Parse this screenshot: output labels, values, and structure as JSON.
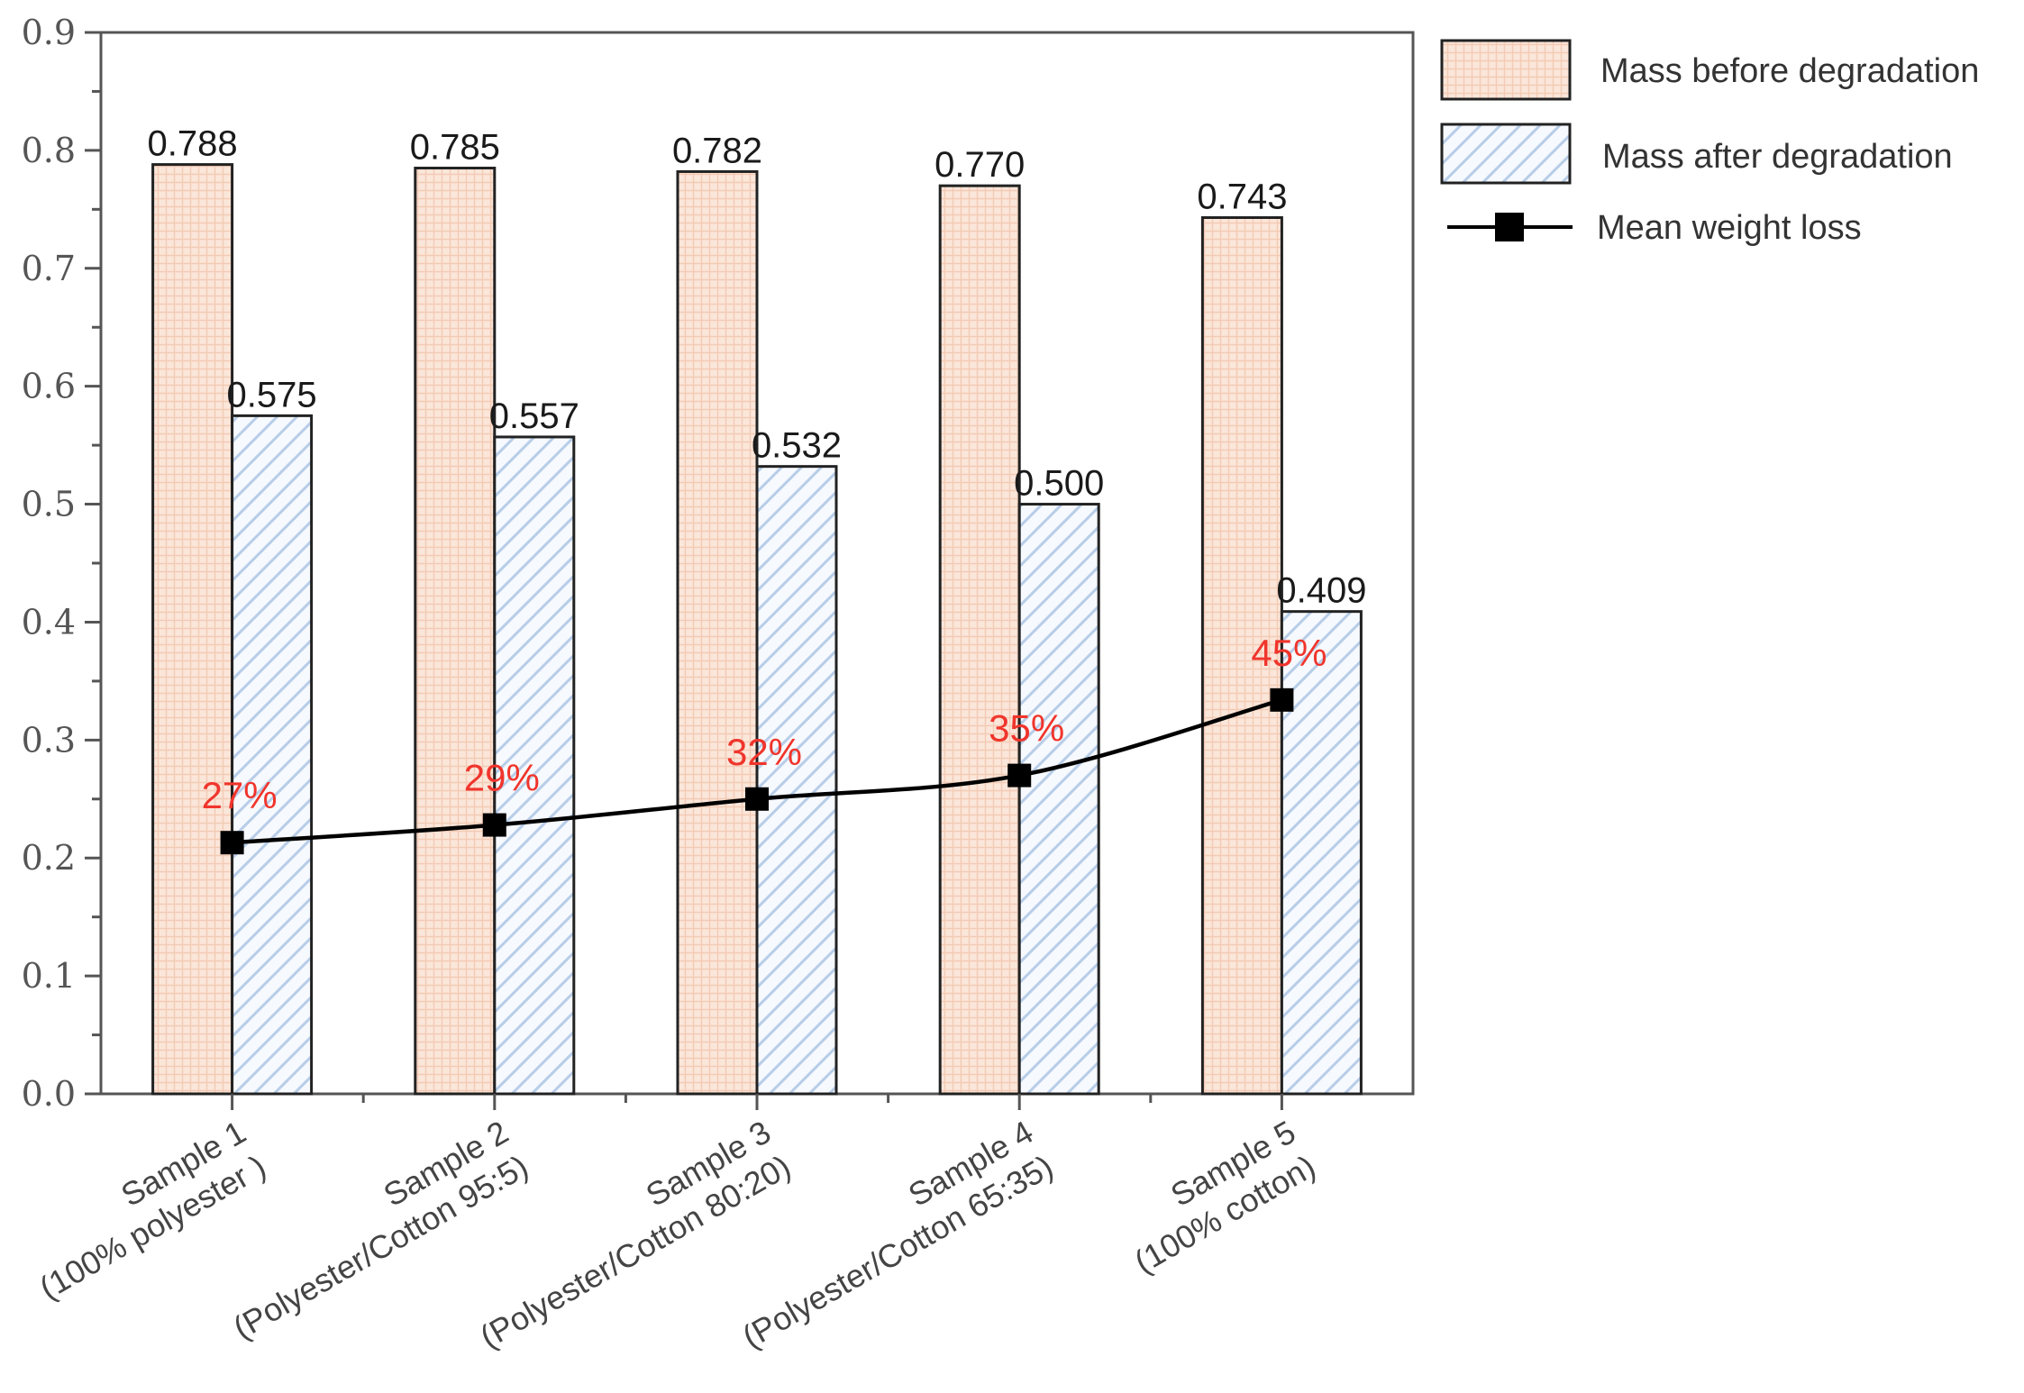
{
  "chart_data": {
    "type": "bar",
    "categories": [
      [
        "Sample 1",
        "(100% polyester )"
      ],
      [
        "Sample 2",
        "(Polyester/Cotton 95:5)"
      ],
      [
        "Sample 3",
        "(Polyester/Cotton 80:20)"
      ],
      [
        "Sample 4",
        "(Polyester/Cotton 65:35)"
      ],
      [
        "Sample 5",
        "(100% cotton)"
      ]
    ],
    "series": [
      {
        "name": "Mass before degradation",
        "type": "bar",
        "values": [
          0.788,
          0.785,
          0.782,
          0.77,
          0.743
        ],
        "labels": [
          "0.788",
          "0.785",
          "0.782",
          "0.770",
          "0.743"
        ],
        "color": "#fbe6da"
      },
      {
        "name": "Mass after degradation",
        "type": "bar",
        "values": [
          0.575,
          0.557,
          0.532,
          0.5,
          0.409
        ],
        "labels": [
          "0.575",
          "0.557",
          "0.532",
          "0.500",
          "0.409"
        ],
        "color": "#eaf1fa"
      },
      {
        "name": "Mean weight loss",
        "type": "line",
        "values": [
          0.213,
          0.228,
          0.25,
          0.27,
          0.334
        ],
        "labels": [
          "27%",
          "29%",
          "32%",
          "35%",
          "45%"
        ],
        "color": "#000000"
      }
    ],
    "title": "",
    "xlabel": "",
    "ylabel": "",
    "ylim": [
      0,
      0.9
    ],
    "yticks": [
      "0.0",
      "0.1",
      "0.2",
      "0.3",
      "0.4",
      "0.5",
      "0.6",
      "0.7",
      "0.8",
      "0.9"
    ],
    "grid": false,
    "legend_position": "top-right outside",
    "point_label_color": "#f0352c"
  }
}
